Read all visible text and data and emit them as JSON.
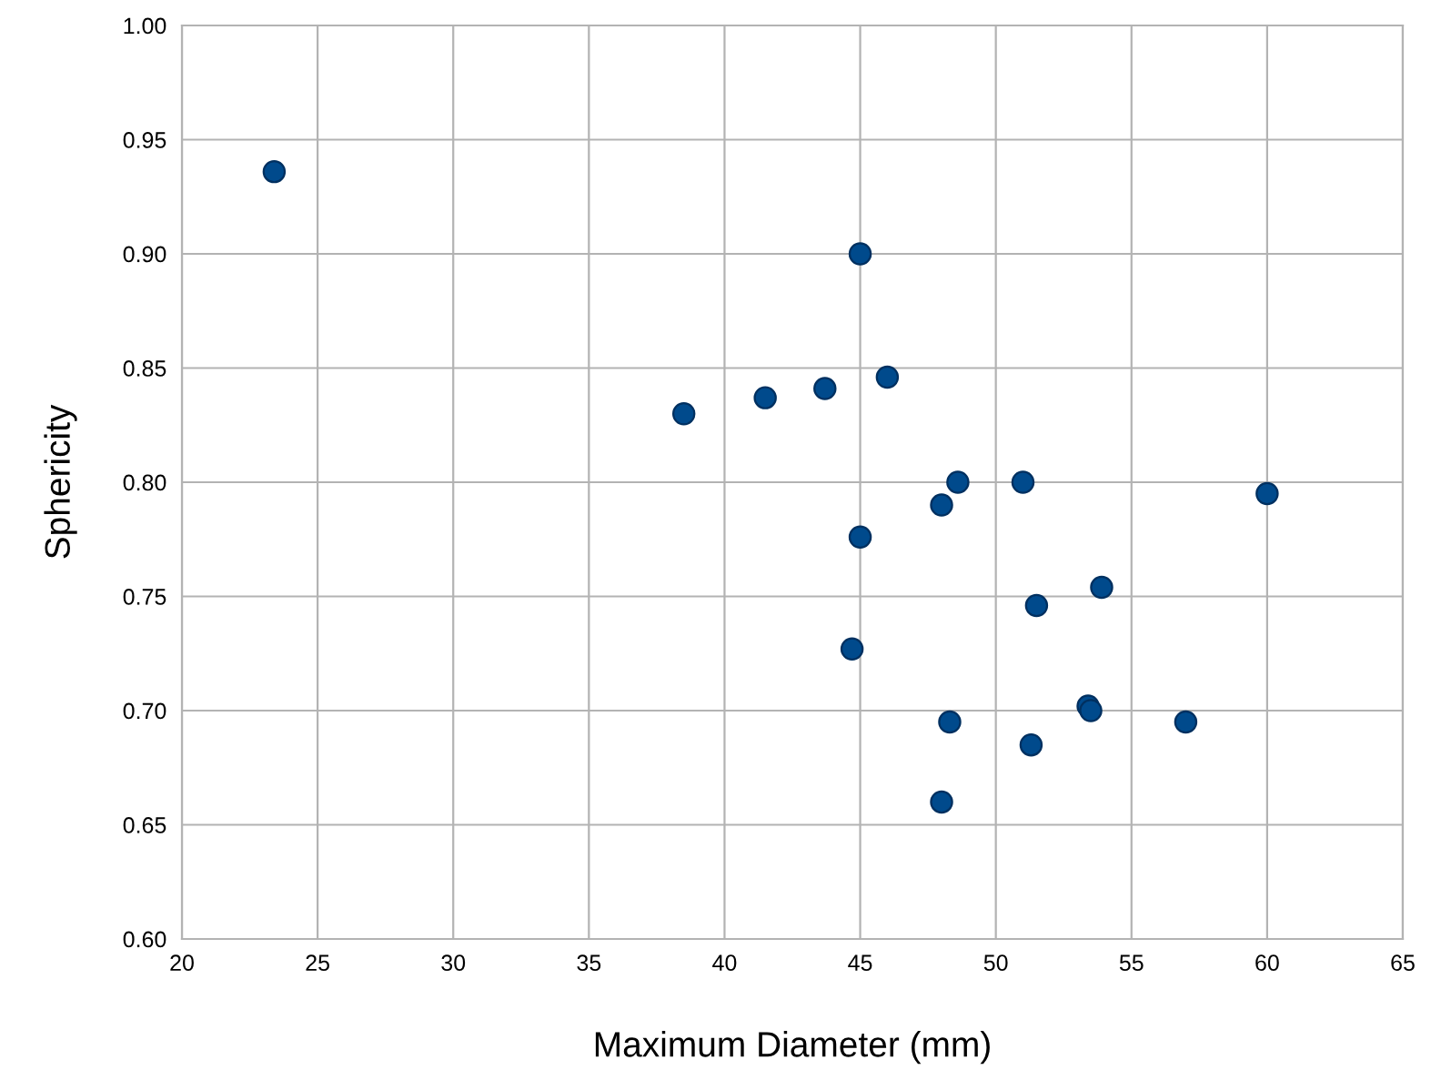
{
  "chart_data": {
    "type": "scatter",
    "xlabel": "Maximum Diameter (mm)",
    "ylabel": "Sphericity",
    "x": [
      23.4,
      45.0,
      38.5,
      41.5,
      43.7,
      46.0,
      48.6,
      48.0,
      51.0,
      60.0,
      45.0,
      51.5,
      53.9,
      44.7,
      53.4,
      53.5,
      48.3,
      57.0,
      51.3,
      48.0
    ],
    "series": [
      {
        "color": "#004a8c",
        "values": [
          0.936,
          0.9,
          0.83,
          0.837,
          0.841,
          0.846,
          0.8,
          0.79,
          0.8,
          0.795,
          0.776,
          0.746,
          0.754,
          0.727,
          0.702,
          0.7,
          0.695,
          0.695,
          0.685,
          0.66
        ]
      }
    ],
    "xlim": [
      20,
      65
    ],
    "xticks": [
      20,
      25,
      30,
      35,
      40,
      45,
      50,
      55,
      60,
      65
    ],
    "ylim": [
      0.6,
      1.0
    ],
    "yticks": [
      {
        "value": 0.6,
        "label": "0.60"
      },
      {
        "value": 0.65,
        "label": "0.65"
      },
      {
        "value": 0.7,
        "label": "0.70"
      },
      {
        "value": 0.75,
        "label": "0.75"
      },
      {
        "value": 0.8,
        "label": "0.80"
      },
      {
        "value": 0.85,
        "label": "0.85"
      },
      {
        "value": 0.9,
        "label": "0.90"
      },
      {
        "value": 0.95,
        "label": "0.95"
      },
      {
        "value": 1.0,
        "label": "1.00"
      }
    ],
    "grid": true,
    "marker": "circle",
    "legend": false
  }
}
